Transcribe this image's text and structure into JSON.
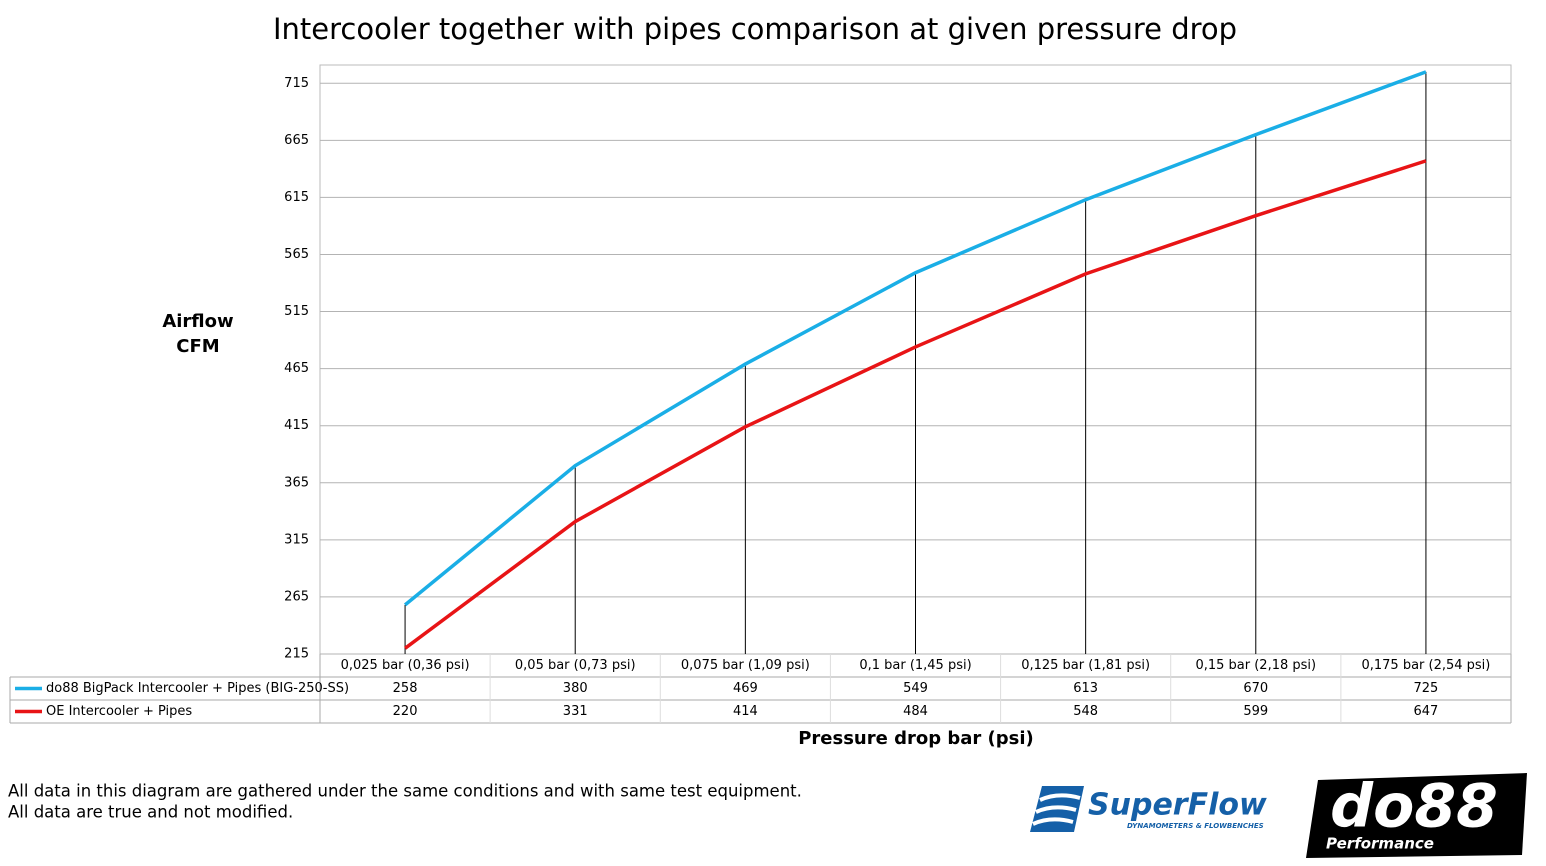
{
  "chart_data": {
    "type": "line",
    "title": "Intercooler together with pipes comparison at given pressure drop",
    "ylabel": [
      "Airflow",
      "CFM"
    ],
    "xlabel": "Pressure drop bar (psi)",
    "categories": [
      "0,025 bar (0,36 psi)",
      "0,05 bar (0,73 psi)",
      "0,075 bar (1,09 psi)",
      "0,1 bar (1,45 psi)",
      "0,125 bar (1,81 psi)",
      "0,15 bar (2,18 psi)",
      "0,175 bar (2,54 psi)"
    ],
    "series": [
      {
        "name": "do88 BigPack Intercooler + Pipes (BIG-250-SS)",
        "color": "#1aaee6",
        "values": [
          258,
          380,
          469,
          549,
          613,
          670,
          725
        ]
      },
      {
        "name": "OE Intercooler + Pipes",
        "color": "#e81416",
        "values": [
          220,
          331,
          414,
          484,
          548,
          599,
          647
        ]
      }
    ],
    "ylim": [
      215,
      731
    ],
    "yticks": [
      215,
      265,
      315,
      365,
      415,
      465,
      515,
      565,
      615,
      665,
      715
    ],
    "grid": true,
    "drop_lines": true
  },
  "footnote": [
    "All data in this diagram are gathered under the same conditions and with same test equipment.",
    "All data are true and not modified."
  ],
  "logos": {
    "superflow": "SuperFlow",
    "superflow_tagline": "DYNAMOMETERS & FLOWBENCHES",
    "do88": "do88",
    "do88_tagline": "Performance"
  }
}
